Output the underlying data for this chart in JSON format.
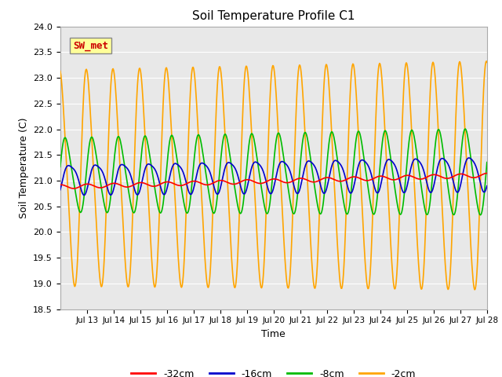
{
  "title": "Soil Temperature Profile C1",
  "xlabel": "Time",
  "ylabel": "Soil Temperature (C)",
  "ylim": [
    18.5,
    24.0
  ],
  "yticks": [
    18.5,
    19.0,
    19.5,
    20.0,
    20.5,
    21.0,
    21.5,
    22.0,
    22.5,
    23.0,
    23.5,
    24.0
  ],
  "xtick_labels": [
    "Jul 13",
    "Jul 14",
    "Jul 15",
    "Jul 16",
    "Jul 17",
    "Jul 18",
    "Jul 19",
    "Jul 20",
    "Jul 21",
    "Jul 22",
    "Jul 23",
    "Jul 24",
    "Jul 25",
    "Jul 26",
    "Jul 27",
    "Jul 28"
  ],
  "legend_label": "SW_met",
  "legend_box_color": "#ffff99",
  "legend_text_color": "#cc0000",
  "fig_bg_color": "#ffffff",
  "plot_bg_color": "#e8e8e8",
  "grid_color": "#ffffff",
  "line_colors": {
    "-32cm": "#ff0000",
    "-16cm": "#0000cc",
    "-8cm": "#00bb00",
    "-2cm": "#ffa500"
  },
  "line_width": 1.2,
  "n_days": 16,
  "pts_per_day": 48
}
